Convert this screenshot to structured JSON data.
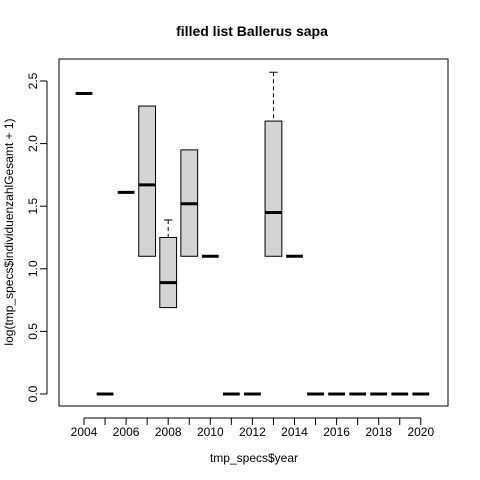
{
  "chart_data": {
    "type": "boxplot",
    "title": "filled list Ballerus sapa",
    "xlabel": "tmp_specs$year",
    "ylabel": "log(tmp_specs$individuenzahlGesamt + 1)",
    "ylim": [
      -0.1,
      2.65
    ],
    "y_ticks": [
      0.0,
      0.5,
      1.0,
      1.5,
      2.0,
      2.5
    ],
    "y_tick_labels": [
      "0.0",
      "0.5",
      "1.0",
      "1.5",
      "2.0",
      "2.5"
    ],
    "categories": [
      2004,
      2005,
      2006,
      2007,
      2008,
      2009,
      2010,
      2011,
      2012,
      2013,
      2014,
      2015,
      2016,
      2017,
      2018,
      2019,
      2020
    ],
    "x_tick_labels": [
      "2004",
      "2006",
      "2008",
      "2010",
      "2012",
      "2014",
      "2016",
      "2018",
      "2020"
    ],
    "box_fill": "#d3d3d3",
    "boxes": [
      {
        "year": 2004,
        "min": 2.4,
        "q1": 2.4,
        "median": 2.4,
        "q3": 2.4,
        "max": 2.4
      },
      {
        "year": 2005,
        "min": 0.0,
        "q1": 0.0,
        "median": 0.0,
        "q3": 0.0,
        "max": 0.0
      },
      {
        "year": 2006,
        "min": 1.61,
        "q1": 1.61,
        "median": 1.61,
        "q3": 1.61,
        "max": 1.61
      },
      {
        "year": 2007,
        "min": 1.1,
        "q1": 1.1,
        "median": 1.67,
        "q3": 2.3,
        "max": 2.3
      },
      {
        "year": 2008,
        "min": 0.69,
        "q1": 0.69,
        "median": 0.89,
        "q3": 1.25,
        "max": 1.39
      },
      {
        "year": 2009,
        "min": 1.1,
        "q1": 1.1,
        "median": 1.52,
        "q3": 1.95,
        "max": 1.95
      },
      {
        "year": 2010,
        "min": 1.1,
        "q1": 1.1,
        "median": 1.1,
        "q3": 1.1,
        "max": 1.1
      },
      {
        "year": 2011,
        "min": 0.0,
        "q1": 0.0,
        "median": 0.0,
        "q3": 0.0,
        "max": 0.0
      },
      {
        "year": 2012,
        "min": 0.0,
        "q1": 0.0,
        "median": 0.0,
        "q3": 0.0,
        "max": 0.0
      },
      {
        "year": 2013,
        "min": 1.1,
        "q1": 1.1,
        "median": 1.45,
        "q3": 2.18,
        "max": 2.57
      },
      {
        "year": 2014,
        "min": 1.1,
        "q1": 1.1,
        "median": 1.1,
        "q3": 1.1,
        "max": 1.1
      },
      {
        "year": 2015,
        "min": 0.0,
        "q1": 0.0,
        "median": 0.0,
        "q3": 0.0,
        "max": 0.0
      },
      {
        "year": 2016,
        "min": 0.0,
        "q1": 0.0,
        "median": 0.0,
        "q3": 0.0,
        "max": 0.0
      },
      {
        "year": 2017,
        "min": 0.0,
        "q1": 0.0,
        "median": 0.0,
        "q3": 0.0,
        "max": 0.0
      },
      {
        "year": 2018,
        "min": 0.0,
        "q1": 0.0,
        "median": 0.0,
        "q3": 0.0,
        "max": 0.0
      },
      {
        "year": 2019,
        "min": 0.0,
        "q1": 0.0,
        "median": 0.0,
        "q3": 0.0,
        "max": 0.0
      },
      {
        "year": 2020,
        "min": 0.0,
        "q1": 0.0,
        "median": 0.0,
        "q3": 0.0,
        "max": 0.0
      }
    ]
  }
}
